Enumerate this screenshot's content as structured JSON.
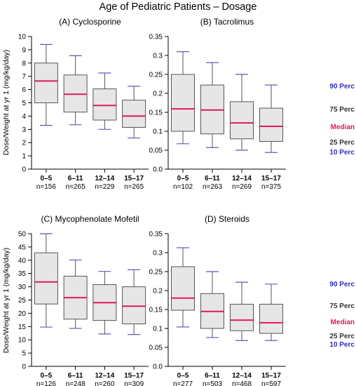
{
  "title": "Age of Pediatric Patients – Dosage",
  "colors": {
    "box_fill": "#e6e6e6",
    "box_edge": "#555555",
    "whisker": "#5b5bc0",
    "median": "#e2185b",
    "p90_text": "#2e2ec8",
    "p75_text": "#333333",
    "median_text": "#e2185b",
    "p25_text": "#333333",
    "p10_text": "#2e2ec8"
  },
  "legend": {
    "p90": "90 Perc",
    "p75": "75 Perc",
    "median": "Median",
    "p25": "25 Perc",
    "p10": "10 Perc"
  },
  "chart_data": [
    {
      "type": "box",
      "title": "(A) Cyclosporine",
      "ylabel": "Dose/Weight at yr 1 (mg/kg/day)",
      "ylim": [
        0,
        10
      ],
      "yticks": [
        0,
        1,
        2,
        3,
        4,
        5,
        6,
        7,
        8,
        9,
        10
      ],
      "yticklabels": [
        "0",
        "1",
        "2",
        "3",
        "4",
        "5",
        "6",
        "7",
        "8",
        "9",
        "10"
      ],
      "categories": [
        "0–5",
        "6–11",
        "12–14",
        "15–17"
      ],
      "counts": [
        "n=156",
        "n=265",
        "n=229",
        "n=265"
      ],
      "p10": [
        3.3,
        3.35,
        3.0,
        2.35
      ],
      "p25": [
        5.0,
        4.3,
        3.7,
        3.15
      ],
      "median": [
        6.65,
        5.65,
        4.8,
        4.0
      ],
      "p75": [
        8.0,
        7.1,
        6.05,
        5.2
      ],
      "p90": [
        9.4,
        8.55,
        7.25,
        6.25
      ]
    },
    {
      "type": "box",
      "title": "(B) Tacrolimus",
      "ylabel": "",
      "ylim": [
        0,
        0.35
      ],
      "yticks": [
        0,
        0.05,
        0.1,
        0.15,
        0.2,
        0.25,
        0.3,
        0.35
      ],
      "yticklabels": [
        "0.0",
        "0.05",
        "0.1",
        "0.15",
        "0.2",
        "0.25",
        "0.3",
        "0.35"
      ],
      "categories": [
        "0–5",
        "6–11",
        "12–14",
        "15–17"
      ],
      "counts": [
        "n=102",
        "n=263",
        "n=269",
        "n=375"
      ],
      "p10": [
        0.067,
        0.057,
        0.05,
        0.044
      ],
      "p25": [
        0.1,
        0.093,
        0.08,
        0.073
      ],
      "median": [
        0.159,
        0.156,
        0.122,
        0.113
      ],
      "p75": [
        0.25,
        0.222,
        0.178,
        0.161
      ],
      "p90": [
        0.31,
        0.281,
        0.25,
        0.222
      ]
    },
    {
      "type": "box",
      "title": "(C) Mycophenolate Mofetil",
      "ylabel": "Dose/Weight at yr 1 (mg/kg/day)",
      "ylim": [
        0,
        50
      ],
      "yticks": [
        0,
        5,
        10,
        15,
        20,
        25,
        30,
        35,
        40,
        45,
        50
      ],
      "yticklabels": [
        "0",
        "5",
        "10",
        "15",
        "20",
        "25",
        "30",
        "35",
        "40",
        "45",
        "50"
      ],
      "categories": [
        "0–5",
        "6–11",
        "12–14",
        "15–17"
      ],
      "counts": [
        "n=126",
        "n=248",
        "n=260",
        "n=309"
      ],
      "p10": [
        14.8,
        14.3,
        12.2,
        12.0
      ],
      "p25": [
        23.5,
        17.8,
        17.3,
        16.0
      ],
      "median": [
        31.8,
        25.9,
        24.0,
        22.7
      ],
      "p75": [
        42.8,
        34.0,
        30.8,
        30.0
      ],
      "p90": [
        50.0,
        40.1,
        35.8,
        36.4
      ]
    },
    {
      "type": "box",
      "title": "(D) Steroids",
      "ylabel": "",
      "ylim": [
        0,
        0.35
      ],
      "yticks": [
        0,
        0.05,
        0.1,
        0.15,
        0.2,
        0.25,
        0.3,
        0.35
      ],
      "yticklabels": [
        "0.0",
        "0.05",
        "0.1",
        "0.15",
        "0.2",
        "0.25",
        "0.3",
        "0.35"
      ],
      "categories": [
        "0–5",
        "6–11",
        "12–14",
        "15–17"
      ],
      "counts": [
        "n=277",
        "n=503",
        "n=468",
        "n=597"
      ],
      "p10": [
        0.104,
        0.076,
        0.068,
        0.068
      ],
      "p25": [
        0.148,
        0.1,
        0.094,
        0.087
      ],
      "median": [
        0.18,
        0.145,
        0.122,
        0.115
      ],
      "p75": [
        0.263,
        0.192,
        0.164,
        0.164
      ],
      "p90": [
        0.313,
        0.25,
        0.222,
        0.217
      ]
    }
  ]
}
